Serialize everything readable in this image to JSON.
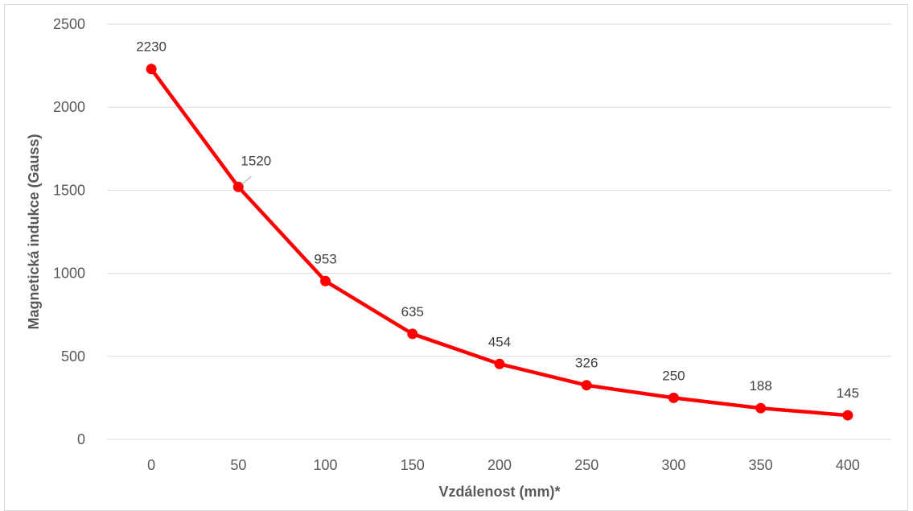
{
  "chart_data": {
    "type": "line",
    "title": "",
    "xlabel": "Vzdálenost (mm)*",
    "ylabel": "Magnetická indukce (Gauss)",
    "categories": [
      "0",
      "50",
      "100",
      "150",
      "200",
      "250",
      "300",
      "350",
      "400"
    ],
    "x": [
      0,
      50,
      100,
      150,
      200,
      250,
      300,
      350,
      400
    ],
    "series": [
      {
        "values": [
          2230,
          1520,
          953,
          635,
          454,
          326,
          250,
          188,
          145
        ],
        "color": "#ff0000"
      }
    ],
    "data_labels": [
      "2230",
      "1520",
      "953",
      "635",
      "454",
      "326",
      "250",
      "188",
      "145"
    ],
    "ylim": [
      0,
      2500
    ],
    "yticks": [
      0,
      500,
      1000,
      1500,
      2000,
      2500
    ],
    "ytick_labels": [
      "0",
      "500",
      "1000",
      "1500",
      "2000",
      "2500"
    ],
    "grid": "horizontal",
    "legend": "none",
    "gridline_color": "#d9d9d9",
    "marker": "circle"
  }
}
